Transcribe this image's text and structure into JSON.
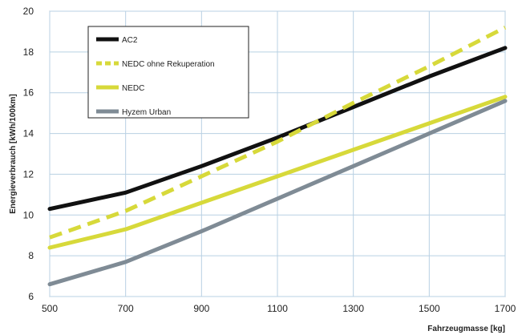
{
  "chart_data": {
    "type": "line",
    "xlabel": "Fahrzeugmasse [kg]",
    "ylabel": "Energieverbrauch [kWh/100km]",
    "xlim": [
      500,
      1700
    ],
    "ylim": [
      6,
      20
    ],
    "xticks": [
      500,
      700,
      900,
      1100,
      1300,
      1500,
      1700
    ],
    "yticks": [
      6,
      8,
      10,
      12,
      14,
      16,
      18,
      20
    ],
    "grid": true,
    "legend_position": "top-left",
    "x": [
      500,
      700,
      900,
      1100,
      1300,
      1500,
      1700
    ],
    "series": [
      {
        "name": "AC2",
        "values": [
          10.3,
          11.1,
          12.4,
          13.8,
          15.3,
          16.8,
          18.2
        ],
        "color": "#111111",
        "dash": "solid"
      },
      {
        "name": "NEDC ohne Rekuperation",
        "values": [
          8.9,
          10.2,
          11.9,
          13.6,
          15.5,
          17.3,
          19.2
        ],
        "color": "#d7d93a",
        "dash": "dashed"
      },
      {
        "name": "NEDC",
        "values": [
          8.4,
          9.3,
          10.6,
          11.9,
          13.2,
          14.5,
          15.8
        ],
        "color": "#d7d93a",
        "dash": "solid"
      },
      {
        "name": "Hyzem Urban",
        "values": [
          6.6,
          7.7,
          9.2,
          10.8,
          12.4,
          14.0,
          15.6
        ],
        "color": "#7f8b95",
        "dash": "solid"
      }
    ]
  }
}
